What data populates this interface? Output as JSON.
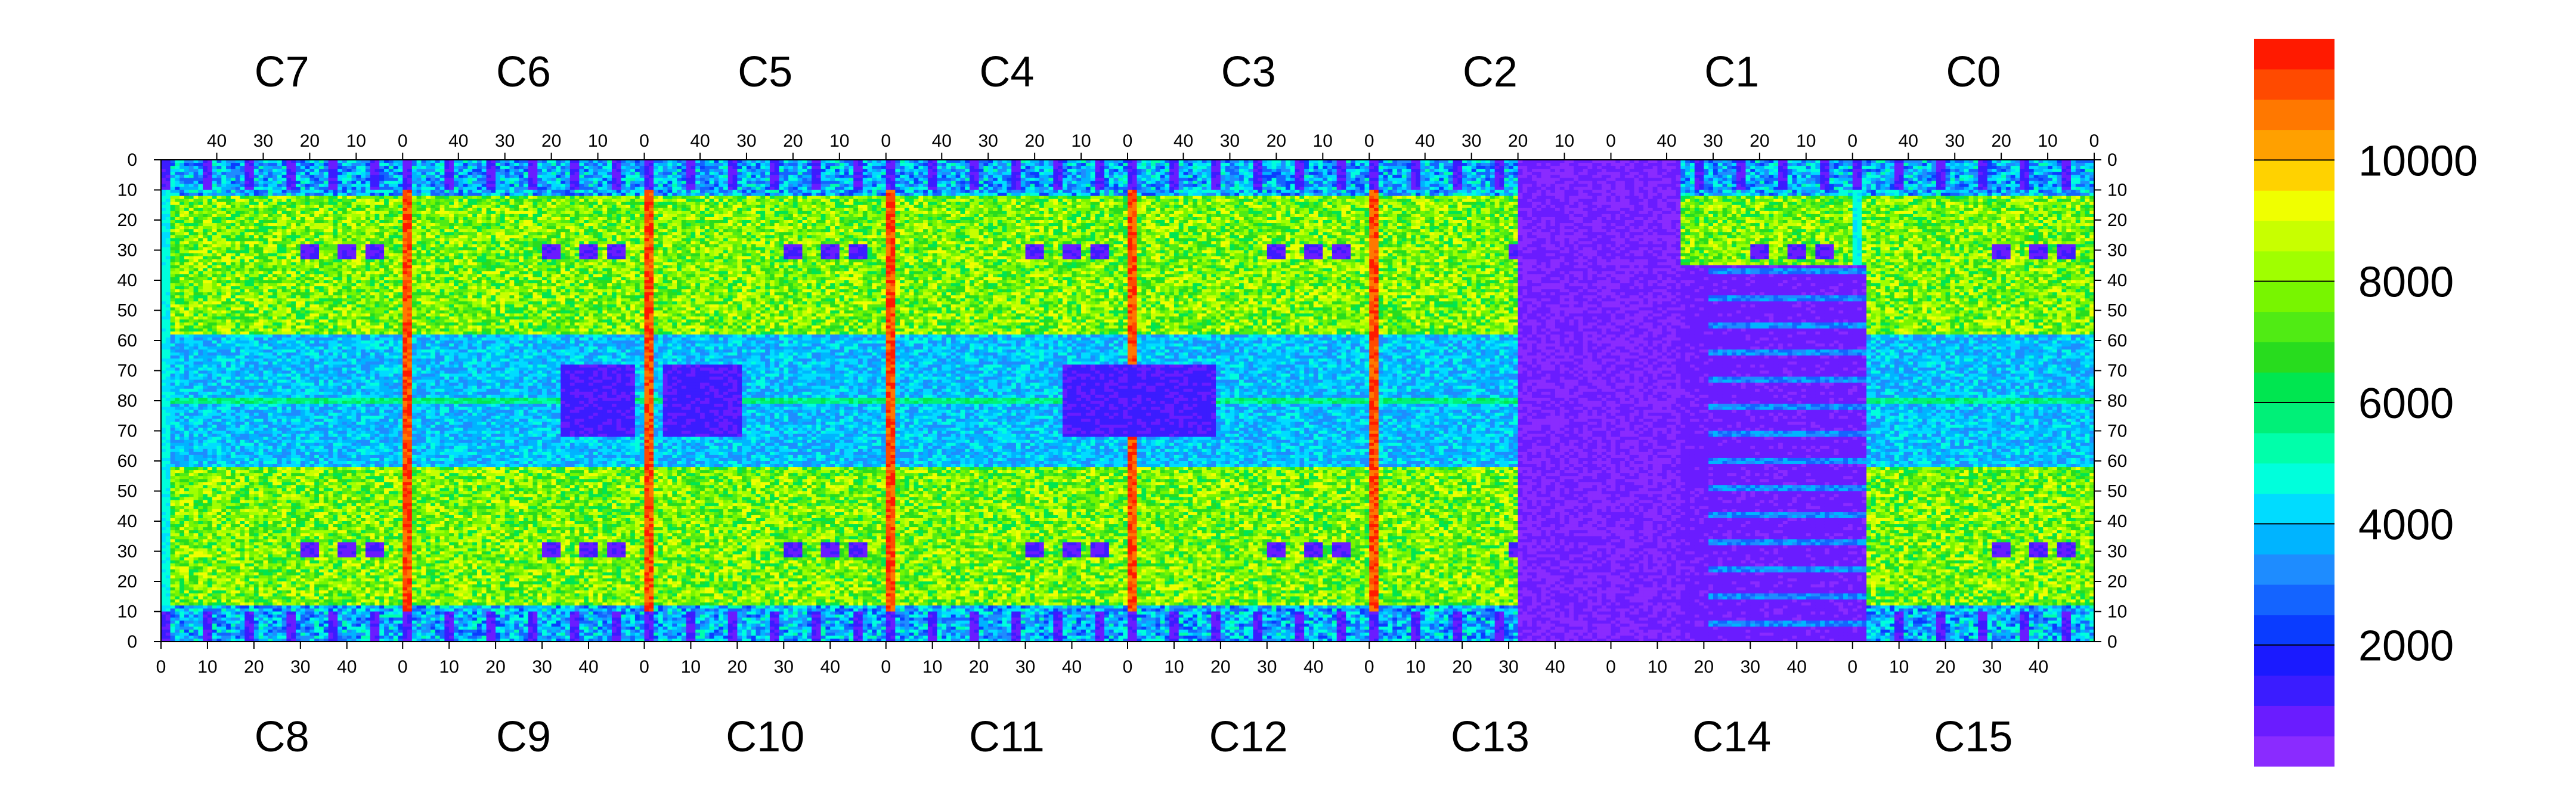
{
  "chart_data": {
    "type": "heatmap",
    "title": "",
    "xlabel": "",
    "ylabel": "",
    "top_chip_labels": [
      "C7",
      "C6",
      "C5",
      "C4",
      "C3",
      "C2",
      "C1",
      "C0"
    ],
    "bottom_chip_labels": [
      "C8",
      "C9",
      "C10",
      "C11",
      "C12",
      "C13",
      "C14",
      "C15"
    ],
    "chip_columns": 52,
    "chip_rows": 80,
    "top_axis_ticks": [
      "40",
      "30",
      "20",
      "10",
      "0"
    ],
    "bottom_axis_ticks": [
      "0",
      "10",
      "20",
      "30",
      "40"
    ],
    "y_ticks": [
      "0",
      "10",
      "20",
      "30",
      "40",
      "50",
      "60",
      "70",
      "80",
      "70",
      "60",
      "50",
      "40",
      "30",
      "20",
      "10",
      "0"
    ],
    "zlim": [
      0,
      12000
    ],
    "colorbar_ticks": [
      2000,
      4000,
      6000,
      8000,
      10000
    ],
    "colorbar_tick_labels": [
      "2000",
      "4000",
      "6000",
      "8000",
      "10000"
    ],
    "palette": [
      "#8a2bff",
      "#6a1cff",
      "#3b1cff",
      "#1a1aff",
      "#0a3cff",
      "#1464ff",
      "#1e8cff",
      "#00b4ff",
      "#00dcff",
      "#00ffdc",
      "#00ffaa",
      "#00f078",
      "#00e650",
      "#28dc1e",
      "#50eb14",
      "#78f500",
      "#a0ff00",
      "#c8ff00",
      "#f0ff00",
      "#ffd200",
      "#ffa000",
      "#ff7800",
      "#ff4a00",
      "#ff1a00"
    ],
    "summary": {
      "chip_interior_typical": 7500,
      "bright_band_rows": 80,
      "hot_columns": 10000,
      "bottom_edge_low_region": "C13-C14 (low ~500)"
    }
  }
}
